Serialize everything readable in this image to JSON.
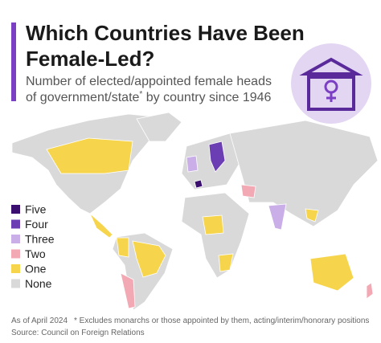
{
  "header": {
    "title_lines": [
      "Which Countries Have Been",
      "Female-Led?"
    ],
    "subtitle_line1": "Number of elected/appointed female heads",
    "subtitle_line2": "of government/state",
    "subtitle_mark": "*",
    "subtitle_line2_end": " by country since 1946"
  },
  "legend": [
    {
      "label": "Five",
      "color": "#3b0f70"
    },
    {
      "label": "Four",
      "color": "#6b3fb3"
    },
    {
      "label": "Three",
      "color": "#c9aee8"
    },
    {
      "label": "Two",
      "color": "#f2a9b4"
    },
    {
      "label": "One",
      "color": "#f6d54c"
    },
    {
      "label": "None",
      "color": "#d9d9d9"
    }
  ],
  "footer": {
    "date": "As of April 2024",
    "note": "* Excludes monarchs or those appointed by them, acting/interim/honorary positions",
    "source": "Source: Council on Foreign Relations"
  }
}
